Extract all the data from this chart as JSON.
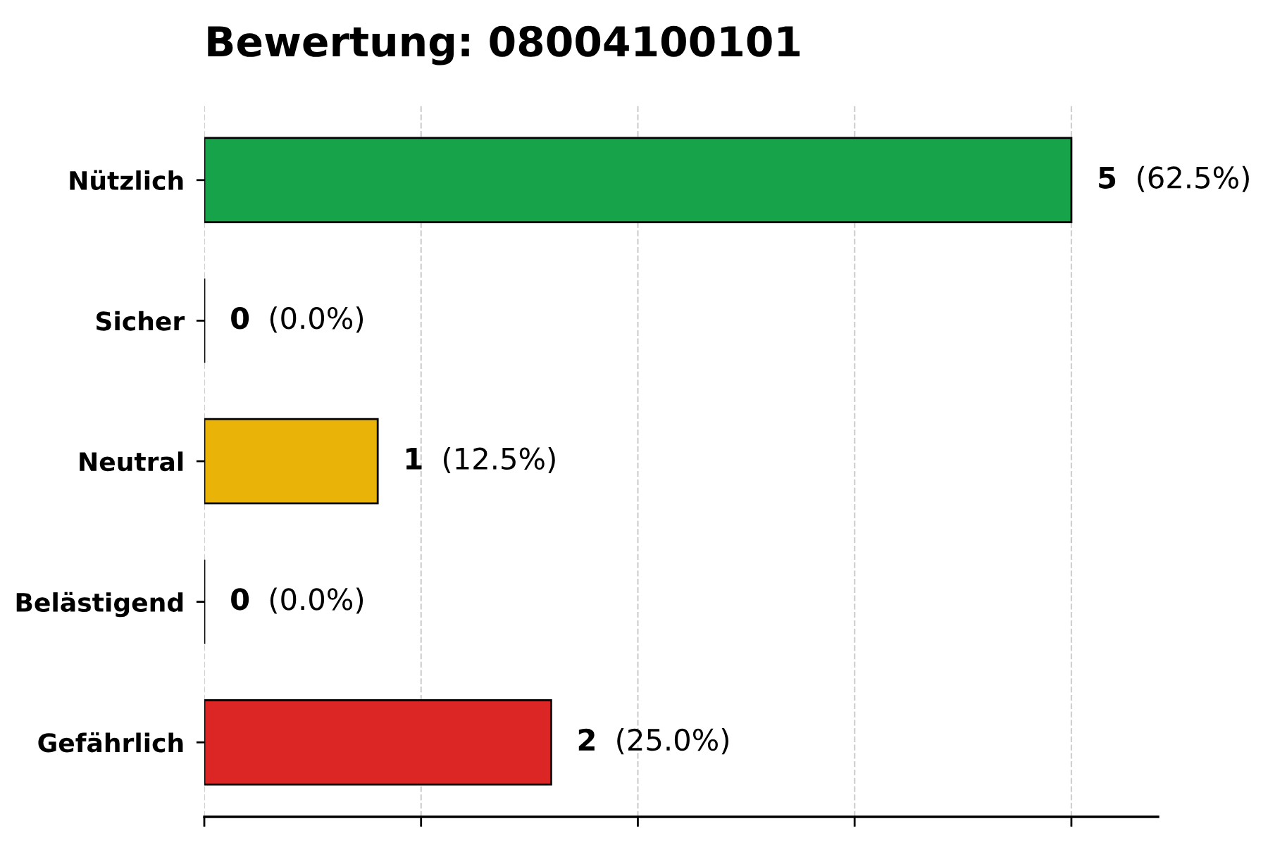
{
  "chart_data": {
    "type": "bar",
    "orientation": "horizontal",
    "title": "Bewertung: 08004100101",
    "categories": [
      "Nützlich",
      "Sicher",
      "Neutral",
      "Belästigend",
      "Gefährlich"
    ],
    "values": [
      5,
      0,
      1,
      0,
      2
    ],
    "colors": [
      "#16a34a",
      null,
      "#eab308",
      null,
      "#dc2626"
    ],
    "value_labels": [
      "5 (62.5%)",
      "0 (0.0%)",
      "1 (12.5%)",
      "0 (0.0%)",
      "2 (25.0%)"
    ],
    "xlim": [
      0,
      5.5
    ],
    "xticks": [
      {
        "value": 0,
        "label": null
      },
      {
        "value": 1.25,
        "label": null
      },
      {
        "value": 2.5,
        "label": null
      },
      {
        "value": 3.75,
        "label": null
      },
      {
        "value": 5,
        "label": null
      }
    ],
    "tick_labels": "y",
    "grid": "x",
    "legend": false
  }
}
